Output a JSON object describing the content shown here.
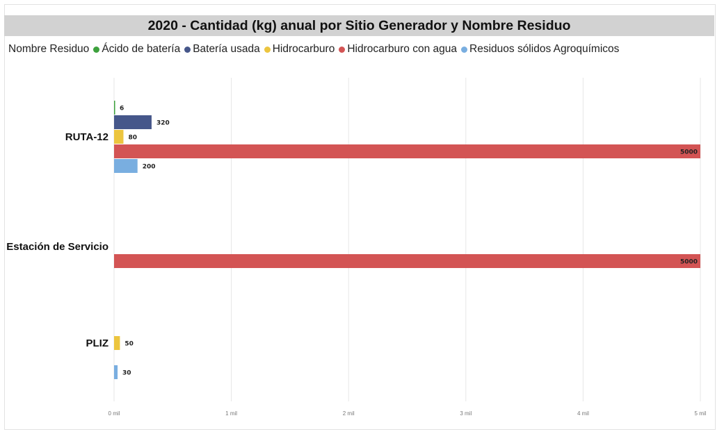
{
  "chart_data": {
    "type": "bar",
    "orientation": "horizontal",
    "title": "2020 - Cantidad (kg) anual por Sitio Generador y Nombre Residuo",
    "legend_title": "Nombre Residuo",
    "legend_position": "top-left",
    "categories": [
      "RUTA-12",
      "Estación de Servicio",
      "PLIZ"
    ],
    "series": [
      {
        "name": "Ácido de batería",
        "color": "#3da13d",
        "values": [
          6,
          null,
          null
        ]
      },
      {
        "name": "Batería usada",
        "color": "#46578a",
        "values": [
          320,
          null,
          null
        ]
      },
      {
        "name": "Hidrocarburo",
        "color": "#ecc53f",
        "values": [
          80,
          null,
          50
        ]
      },
      {
        "name": "Hidrocarburo con agua",
        "color": "#d35454",
        "values": [
          5000,
          5000,
          null
        ]
      },
      {
        "name": "Residuos sólidos Agroquímicos",
        "color": "#79aee0",
        "values": [
          200,
          null,
          30
        ]
      }
    ],
    "xlim": [
      0,
      5000
    ],
    "x_ticks": [
      0,
      1000,
      2000,
      3000,
      4000,
      5000
    ],
    "x_tick_labels": [
      "0 mil",
      "1 mil",
      "2 mil",
      "3 mil",
      "4 mil",
      "5 mil"
    ],
    "grid": true,
    "xlabel": "",
    "ylabel": ""
  }
}
